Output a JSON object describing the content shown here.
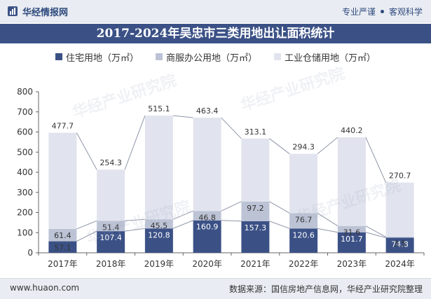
{
  "header": {
    "brand_name": "华经情报网",
    "slogan_left": "专业严谨",
    "slogan_right": "客观科学"
  },
  "watermark": "华经产业研究院",
  "footer": {
    "website": "www.huaon.com",
    "source": "数据来源：国信房地产信息网，华经产业研究院整理"
  },
  "colors": {
    "residential": "#3b5186",
    "commercial": "#bcc3d5",
    "industrial": "#e1e4ee",
    "title_bg": "#3b5186"
  },
  "chart_data": {
    "type": "bar",
    "stacked": true,
    "title": "2017-2024年吴忠市三类用地出让面积统计",
    "categories": [
      "2017年",
      "2018年",
      "2019年",
      "2020年",
      "2021年",
      "2022年",
      "2023年",
      "2024年"
    ],
    "series": [
      {
        "name": "住宅用地（万㎡）",
        "values": [
          57.1,
          107.4,
          120.8,
          160.9,
          157.3,
          120.6,
          101.7,
          74.8
        ]
      },
      {
        "name": "商服办公用地（万㎡）",
        "values": [
          61.4,
          51.4,
          45.5,
          46.8,
          97.2,
          76.7,
          31.6,
          3.5
        ]
      },
      {
        "name": "工业仓储用地（万㎡）",
        "values": [
          477.7,
          254.3,
          515.1,
          463.4,
          313.1,
          294.3,
          440.2,
          270.7
        ]
      }
    ],
    "ylim": [
      0,
      800
    ],
    "yticks": [
      0,
      100,
      200,
      300,
      400,
      500,
      600,
      700,
      800
    ],
    "legend_position": "top",
    "grid": false
  }
}
